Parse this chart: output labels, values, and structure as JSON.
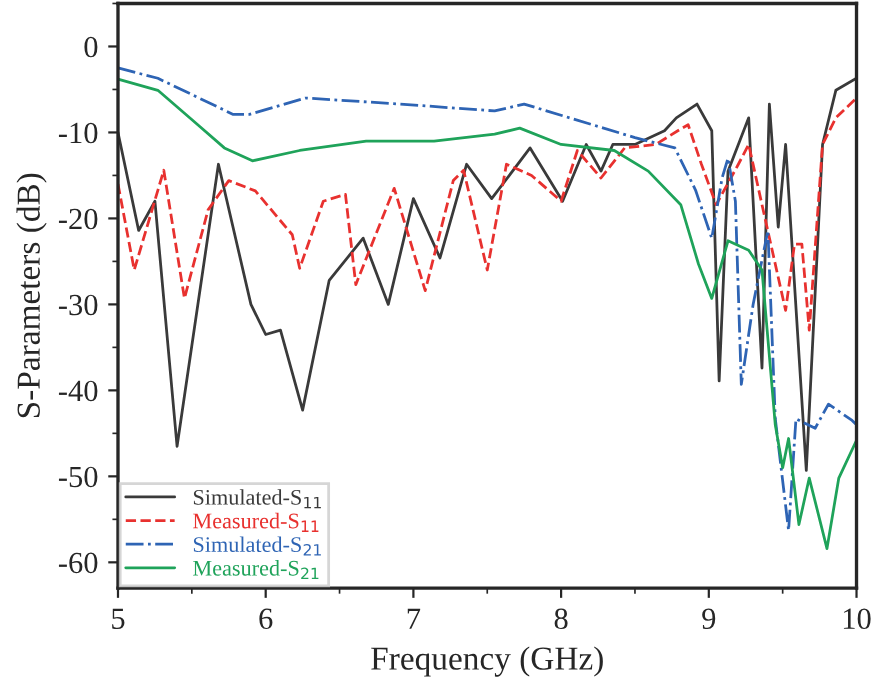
{
  "chart_data": {
    "type": "line",
    "xlabel": "Frequency (GHz)",
    "ylabel": "S-Parameters (dB)",
    "xlim": [
      5,
      10
    ],
    "xticks": [
      5,
      6,
      7,
      8,
      9,
      10
    ],
    "ylim": [
      -63,
      5
    ],
    "yticks": [
      -60,
      -50,
      -40,
      -30,
      -20,
      -10,
      0
    ],
    "grid": false,
    "legend": "bottom left",
    "series": [
      {
        "name": "Simulated-S$_{11}$",
        "color": "#3a3a3a",
        "line_style": "solid",
        "x": [
          5.0,
          5.14,
          5.25,
          5.4,
          5.68,
          5.9,
          6.0,
          6.1,
          6.25,
          6.43,
          6.66,
          6.83,
          7.0,
          7.18,
          7.36,
          7.53,
          7.79,
          8.01,
          8.17,
          8.27,
          8.35,
          8.5,
          8.7,
          8.78,
          8.92,
          9.02,
          9.07,
          9.13,
          9.27,
          9.36,
          9.41,
          9.47,
          9.52,
          9.66,
          9.77,
          9.86,
          10.0
        ],
        "values": [
          -10,
          -21.4,
          -18,
          -46.5,
          -13.7,
          -30,
          -33.5,
          -33,
          -42.3,
          -27.2,
          -22.3,
          -30,
          -17.7,
          -24.6,
          -13.7,
          -17.7,
          -11.8,
          -18,
          -11.4,
          -14.5,
          -11.4,
          -11.4,
          -9.8,
          -8.3,
          -6.7,
          -9.8,
          -38.9,
          -14.5,
          -8.3,
          -37.4,
          -6.7,
          -21,
          -11.4,
          -49.3,
          -11.4,
          -5.1,
          -3.7
        ]
      },
      {
        "name": "Measured-S$_{11}$",
        "color": "#e8312f",
        "line_style": "dashed",
        "x": [
          5.0,
          5.11,
          5.31,
          5.45,
          5.61,
          5.75,
          5.93,
          6.18,
          6.23,
          6.39,
          6.54,
          6.61,
          6.87,
          7.08,
          7.27,
          7.34,
          7.5,
          7.63,
          7.8,
          8.0,
          8.11,
          8.27,
          8.43,
          8.64,
          8.79,
          8.86,
          8.95,
          9.05,
          9.2,
          9.27,
          9.36,
          9.52,
          9.58,
          9.63,
          9.68,
          9.77,
          9.86,
          10.0
        ],
        "values": [
          -16,
          -26,
          -14.4,
          -29.3,
          -19,
          -15.6,
          -16.8,
          -21.9,
          -25.8,
          -18,
          -17.2,
          -27.7,
          -16.5,
          -28.4,
          -15.6,
          -14.4,
          -26,
          -13.7,
          -15,
          -18,
          -12.1,
          -15.3,
          -11.8,
          -11.4,
          -9.8,
          -9.1,
          -13.7,
          -18.4,
          -13.7,
          -11.4,
          -18.4,
          -30.7,
          -23,
          -23,
          -33,
          -11.4,
          -8.3,
          -6
        ]
      },
      {
        "name": "Simulated-S$_{21}$",
        "color": "#2e64b4",
        "line_style": "dashdot",
        "x": [
          5.0,
          5.27,
          5.78,
          5.89,
          6.27,
          6.91,
          7.55,
          7.75,
          8.5,
          8.77,
          8.91,
          9.02,
          9.09,
          9.13,
          9.18,
          9.22,
          9.3,
          9.4,
          9.45,
          9.54,
          9.59,
          9.72,
          9.81,
          9.97,
          10.0
        ],
        "values": [
          -2.5,
          -3.7,
          -7.9,
          -7.9,
          -6,
          -6.7,
          -7.5,
          -6.7,
          -10.6,
          -11.8,
          -16.7,
          -22.3,
          -15.3,
          -13,
          -18,
          -39.3,
          -30,
          -21.4,
          -43.3,
          -56.3,
          -43.3,
          -44.4,
          -41.6,
          -43.5,
          -44
        ]
      },
      {
        "name": "Measured-S$_{21}$",
        "color": "#1fa35a",
        "line_style": "solid",
        "x": [
          5.0,
          5.27,
          5.54,
          5.72,
          5.91,
          6.23,
          6.68,
          7.14,
          7.55,
          7.72,
          8.0,
          8.36,
          8.59,
          8.81,
          8.93,
          9.02,
          9.13,
          9.27,
          9.36,
          9.45,
          9.5,
          9.54,
          9.61,
          9.68,
          9.8,
          9.88,
          10.0
        ],
        "values": [
          -3.8,
          -5.1,
          -9.1,
          -11.8,
          -13.3,
          -12.1,
          -11,
          -11,
          -10.2,
          -9.5,
          -11.4,
          -12.1,
          -14.5,
          -18.4,
          -25.3,
          -29.3,
          -22.6,
          -23.7,
          -26,
          -44,
          -49,
          -45.6,
          -55.6,
          -50.2,
          -58.4,
          -50.2,
          -45.8
        ]
      }
    ]
  }
}
